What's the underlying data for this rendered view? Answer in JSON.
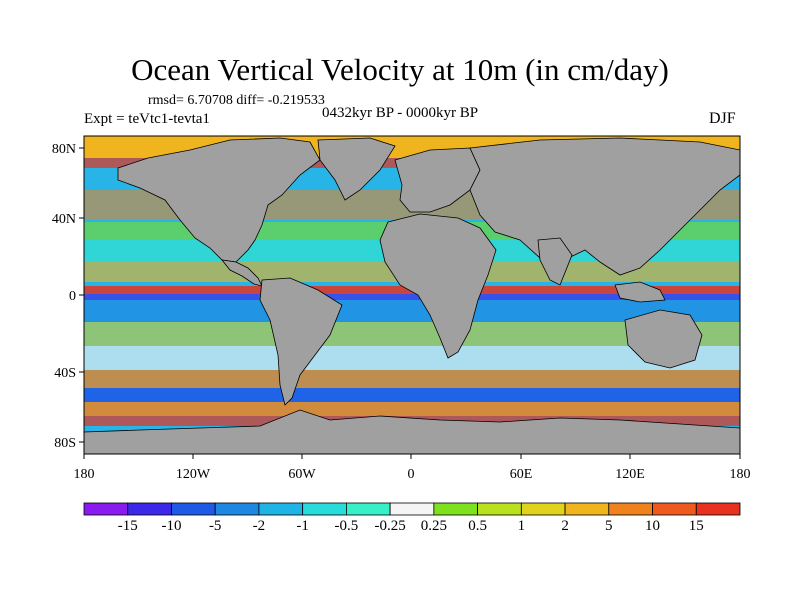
{
  "title": "Ocean Vertical Velocity at 10m (in cm/day)",
  "stats": "rmsd= 6.70708 diff= -0.219533",
  "period": "0432kyr BP - 0000kyr BP",
  "experiment": "Expt = teVtc1-tevta1",
  "season": "DJF",
  "lat_labels": [
    "80N",
    "40N",
    "0",
    "40S",
    "80S"
  ],
  "lon_labels": [
    "180",
    "120W",
    "60W",
    "0",
    "60E",
    "120E",
    "180"
  ],
  "colorbar": {
    "labels": [
      "-15",
      "-10",
      "-5",
      "-2",
      "-1",
      "-0.5",
      "-0.25",
      "0.25",
      "0.5",
      "1",
      "2",
      "5",
      "10",
      "15"
    ],
    "colors": [
      "#8a1bf0",
      "#3c28e8",
      "#1e5ae6",
      "#1e87e1",
      "#1eb4e6",
      "#28dcdc",
      "#37f0c8",
      "#f5f5f5",
      "#7de11e",
      "#b9e11e",
      "#e1d21e",
      "#f0b41e",
      "#f0821e",
      "#ee5a1e",
      "#e6321e"
    ]
  },
  "land_color": "#a0a0a0"
}
